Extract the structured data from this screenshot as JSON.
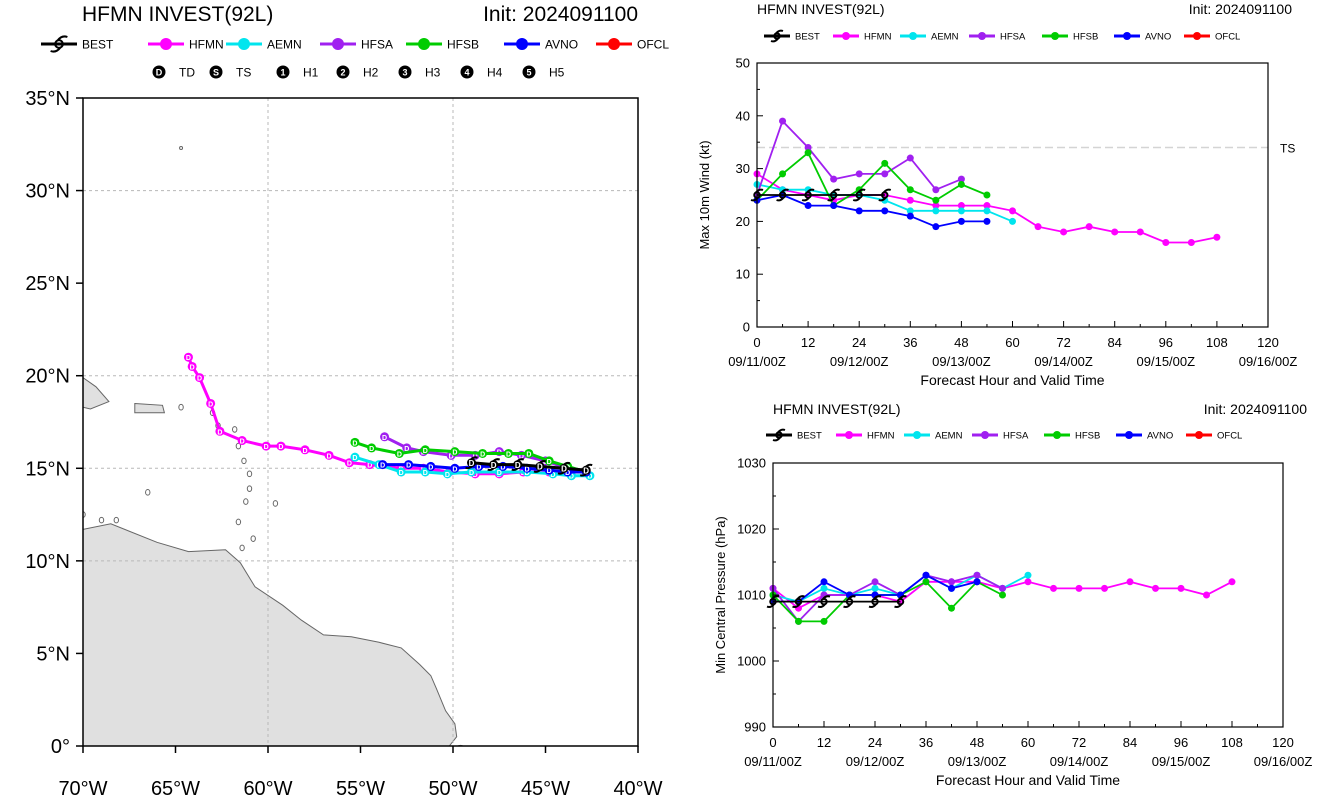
{
  "colors": {
    "BEST": "#000000",
    "HFMN": "#ff00ff",
    "AEMN": "#00e5ee",
    "HFSA": "#a020f0",
    "HFSB": "#00cc00",
    "AVNO": "#0000ff",
    "OFCL": "#ff0000",
    "land": "#e0e0e0",
    "grid": "#b8b8b8"
  },
  "legend": [
    "BEST",
    "HFMN",
    "AEMN",
    "HFSA",
    "HFSB",
    "AVNO",
    "OFCL"
  ],
  "intensity_legend": [
    {
      "sym": "D",
      "label": "TD"
    },
    {
      "sym": "S",
      "label": "TS"
    },
    {
      "sym": "1",
      "label": "H1"
    },
    {
      "sym": "2",
      "label": "H2"
    },
    {
      "sym": "3",
      "label": "H3"
    },
    {
      "sym": "4",
      "label": "H4"
    },
    {
      "sym": "5",
      "label": "H5"
    }
  ],
  "chart_data": [
    {
      "type": "scatter",
      "role": "track-map",
      "title": "HFMN INVEST(92L)",
      "init_label": "Init: 2024091100",
      "xlim": [
        -70,
        -40
      ],
      "ylim": [
        0,
        35
      ],
      "x_ticks": [
        -70,
        -65,
        -60,
        -55,
        -50,
        -45,
        -40
      ],
      "x_tick_labels": [
        "70°W",
        "65°W",
        "60°W",
        "55°W",
        "50°W",
        "45°W",
        "40°W"
      ],
      "y_ticks": [
        0,
        5,
        10,
        15,
        20,
        25,
        30,
        35
      ],
      "y_tick_labels": [
        "0°",
        "5°N",
        "10°N",
        "15°N",
        "20°N",
        "25°N",
        "30°N",
        "35°N"
      ],
      "series": [
        {
          "name": "HFMN",
          "lon": [
            -42.8,
            -43.8,
            -44.8,
            -46.2,
            -47.5,
            -48.8,
            -50.2,
            -51.6,
            -52.8,
            -54.5,
            -55.6,
            -56.7,
            -58.0,
            -59.3,
            -60.1,
            -61.4,
            -62.6,
            -63.1,
            -63.7,
            -64.1,
            -64.3
          ],
          "lat": [
            14.8,
            14.8,
            14.8,
            14.8,
            14.7,
            14.7,
            14.8,
            15.0,
            15.0,
            15.2,
            15.3,
            15.7,
            16.0,
            16.2,
            16.2,
            16.5,
            17.0,
            18.5,
            19.9,
            20.5,
            21.0
          ]
        },
        {
          "name": "AEMN",
          "lon": [
            -42.6,
            -43.6,
            -44.6,
            -46.0,
            -47.5,
            -49.0,
            -50.3,
            -51.5,
            -52.8,
            -54.0,
            -55.3
          ],
          "lat": [
            14.6,
            14.6,
            14.7,
            14.8,
            14.8,
            14.8,
            14.7,
            14.8,
            14.8,
            15.2,
            15.6
          ]
        },
        {
          "name": "HFSA",
          "lon": [
            -42.8,
            -43.8,
            -45.0,
            -46.3,
            -47.5,
            -48.8,
            -50.1,
            -51.6,
            -52.5,
            -53.7
          ],
          "lat": [
            14.8,
            15.0,
            15.4,
            15.7,
            15.9,
            15.7,
            15.7,
            15.9,
            16.1,
            16.7
          ]
        },
        {
          "name": "HFSB",
          "lon": [
            -42.8,
            -43.8,
            -44.8,
            -45.9,
            -47.0,
            -48.4,
            -49.9,
            -51.5,
            -52.9,
            -54.4,
            -55.3
          ],
          "lat": [
            14.8,
            15.1,
            15.4,
            15.8,
            15.8,
            15.8,
            15.9,
            16.0,
            15.8,
            16.1,
            16.4
          ]
        },
        {
          "name": "AVNO",
          "lon": [
            -42.8,
            -43.8,
            -44.8,
            -46.0,
            -47.3,
            -48.6,
            -49.9,
            -51.2,
            -52.4,
            -53.8
          ],
          "lat": [
            14.8,
            14.8,
            14.9,
            15.0,
            15.1,
            15.1,
            15.0,
            15.1,
            15.2,
            15.2
          ]
        },
        {
          "name": "BEST",
          "lon": [
            -42.8,
            -44.0,
            -45.3,
            -46.5,
            -47.8,
            -49.0
          ],
          "lat": [
            14.9,
            15.0,
            15.1,
            15.2,
            15.2,
            15.3
          ]
        }
      ]
    },
    {
      "type": "line",
      "role": "wind",
      "title": "HFMN INVEST(92L)",
      "init_label": "Init: 2024091100",
      "xlabel": "Forecast Hour and Valid Time",
      "ylabel": "Max 10m Wind (kt)",
      "xlim": [
        0,
        120
      ],
      "ylim": [
        0,
        50
      ],
      "x_ticks": [
        0,
        12,
        24,
        36,
        48,
        60,
        72,
        84,
        96,
        108,
        120
      ],
      "y_ticks": [
        0,
        10,
        20,
        30,
        40,
        50
      ],
      "date_labels": [
        {
          "x": 0,
          "label": "09/11/00Z"
        },
        {
          "x": 24,
          "label": "09/12/00Z"
        },
        {
          "x": 48,
          "label": "09/13/00Z"
        },
        {
          "x": 72,
          "label": "09/14/00Z"
        },
        {
          "x": 96,
          "label": "09/15/00Z"
        },
        {
          "x": 120,
          "label": "09/16/00Z"
        }
      ],
      "reference_line": {
        "y": 34,
        "label": "TS"
      },
      "series": [
        {
          "name": "HFMN",
          "x": [
            0,
            6,
            12,
            18,
            24,
            30,
            36,
            42,
            48,
            54,
            60,
            66,
            72,
            78,
            84,
            90,
            96,
            102,
            108
          ],
          "y": [
            29,
            26,
            25,
            24,
            25,
            25,
            24,
            23,
            23,
            23,
            22,
            19,
            18,
            19,
            18,
            18,
            16,
            16,
            17
          ]
        },
        {
          "name": "AEMN",
          "x": [
            0,
            6,
            12,
            18,
            24,
            30,
            36,
            42,
            48,
            54,
            60
          ],
          "y": [
            27,
            26,
            26,
            25,
            25,
            24,
            22,
            22,
            22,
            22,
            20
          ]
        },
        {
          "name": "HFSA",
          "x": [
            0,
            6,
            12,
            18,
            24,
            30,
            36,
            42,
            48
          ],
          "y": [
            25,
            39,
            34,
            28,
            29,
            29,
            32,
            26,
            28
          ]
        },
        {
          "name": "HFSB",
          "x": [
            0,
            6,
            12,
            18,
            24,
            30,
            36,
            42,
            48,
            54
          ],
          "y": [
            24,
            29,
            33,
            23,
            26,
            31,
            26,
            24,
            27,
            25
          ]
        },
        {
          "name": "AVNO",
          "x": [
            0,
            6,
            12,
            18,
            24,
            30,
            36,
            42,
            48,
            54
          ],
          "y": [
            24,
            25,
            23,
            23,
            22,
            22,
            21,
            19,
            20,
            20
          ]
        },
        {
          "name": "BEST",
          "x": [
            0,
            6,
            12,
            18,
            24,
            30
          ],
          "y": [
            25,
            25,
            25,
            25,
            25,
            25
          ]
        }
      ]
    },
    {
      "type": "line",
      "role": "pressure",
      "title": "HFMN INVEST(92L)",
      "init_label": "Init: 2024091100",
      "xlabel": "Forecast Hour and Valid Time",
      "ylabel": "Min Central Pressure (hPa)",
      "xlim": [
        0,
        120
      ],
      "ylim": [
        990,
        1030
      ],
      "x_ticks": [
        0,
        12,
        24,
        36,
        48,
        60,
        72,
        84,
        96,
        108,
        120
      ],
      "y_ticks": [
        990,
        1000,
        1010,
        1020,
        1030
      ],
      "date_labels": [
        {
          "x": 0,
          "label": "09/11/00Z"
        },
        {
          "x": 24,
          "label": "09/12/00Z"
        },
        {
          "x": 48,
          "label": "09/13/00Z"
        },
        {
          "x": 72,
          "label": "09/14/00Z"
        },
        {
          "x": 96,
          "label": "09/15/00Z"
        },
        {
          "x": 120,
          "label": "09/16/00Z"
        }
      ],
      "series": [
        {
          "name": "HFMN",
          "x": [
            0,
            6,
            12,
            18,
            24,
            30,
            36,
            42,
            48,
            54,
            60,
            66,
            72,
            78,
            84,
            90,
            96,
            102,
            108
          ],
          "y": [
            1011,
            1008,
            1010,
            1010,
            1010,
            1009,
            1012,
            1012,
            1012,
            1011,
            1012,
            1011,
            1011,
            1011,
            1012,
            1011,
            1011,
            1010,
            1012
          ]
        },
        {
          "name": "AEMN",
          "x": [
            0,
            6,
            12,
            18,
            24,
            30,
            36,
            42,
            48,
            54,
            60
          ],
          "y": [
            1010,
            1009,
            1011,
            1010,
            1011,
            1010,
            1013,
            1011,
            1013,
            1011,
            1013
          ]
        },
        {
          "name": "HFSA",
          "x": [
            0,
            6,
            12,
            18,
            24,
            30,
            36,
            42,
            48,
            54
          ],
          "y": [
            1011,
            1006,
            1010,
            1010,
            1012,
            1010,
            1013,
            1012,
            1013,
            1011
          ]
        },
        {
          "name": "HFSB",
          "x": [
            0,
            6,
            12,
            18,
            24,
            30,
            36,
            42,
            48,
            54
          ],
          "y": [
            1010,
            1006,
            1006,
            1010,
            1010,
            1010,
            1012,
            1008,
            1012,
            1010
          ]
        },
        {
          "name": "AVNO",
          "x": [
            0,
            6,
            12,
            18,
            24,
            30,
            36,
            42,
            48
          ],
          "y": [
            1009,
            1009,
            1012,
            1010,
            1010,
            1010,
            1013,
            1011,
            1012
          ]
        },
        {
          "name": "BEST",
          "x": [
            0,
            6,
            12,
            18,
            24,
            30
          ],
          "y": [
            1009,
            1009,
            1009,
            1009,
            1009,
            1009
          ]
        }
      ]
    }
  ]
}
